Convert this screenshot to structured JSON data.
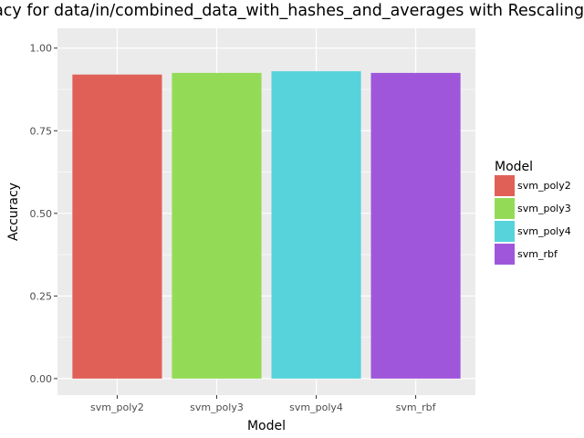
{
  "chart_data": {
    "type": "bar",
    "title": "Accuracy for data/in/combined_data_with_hashes_and_averages with Rescaling",
    "xlabel": "Model",
    "ylabel": "Accuracy",
    "categories": [
      "svm_poly2",
      "svm_poly3",
      "svm_poly4",
      "svm_rbf"
    ],
    "values": [
      0.92,
      0.925,
      0.93,
      0.925
    ],
    "colors": [
      "#E06058",
      "#93DB57",
      "#57D3DB",
      "#A056DB"
    ],
    "ylim": [
      -0.05,
      1.06
    ],
    "yticks": [
      0.0,
      0.25,
      0.5,
      0.75,
      1.0
    ],
    "ytick_labels": [
      "0.00",
      "0.25",
      "0.50",
      "0.75",
      "1.00"
    ],
    "grid": true,
    "panel_background": "#EBEBEB",
    "legend": {
      "title": "Model",
      "placement": "right",
      "entries": [
        "svm_poly2",
        "svm_poly3",
        "svm_poly4",
        "svm_rbf"
      ]
    }
  }
}
